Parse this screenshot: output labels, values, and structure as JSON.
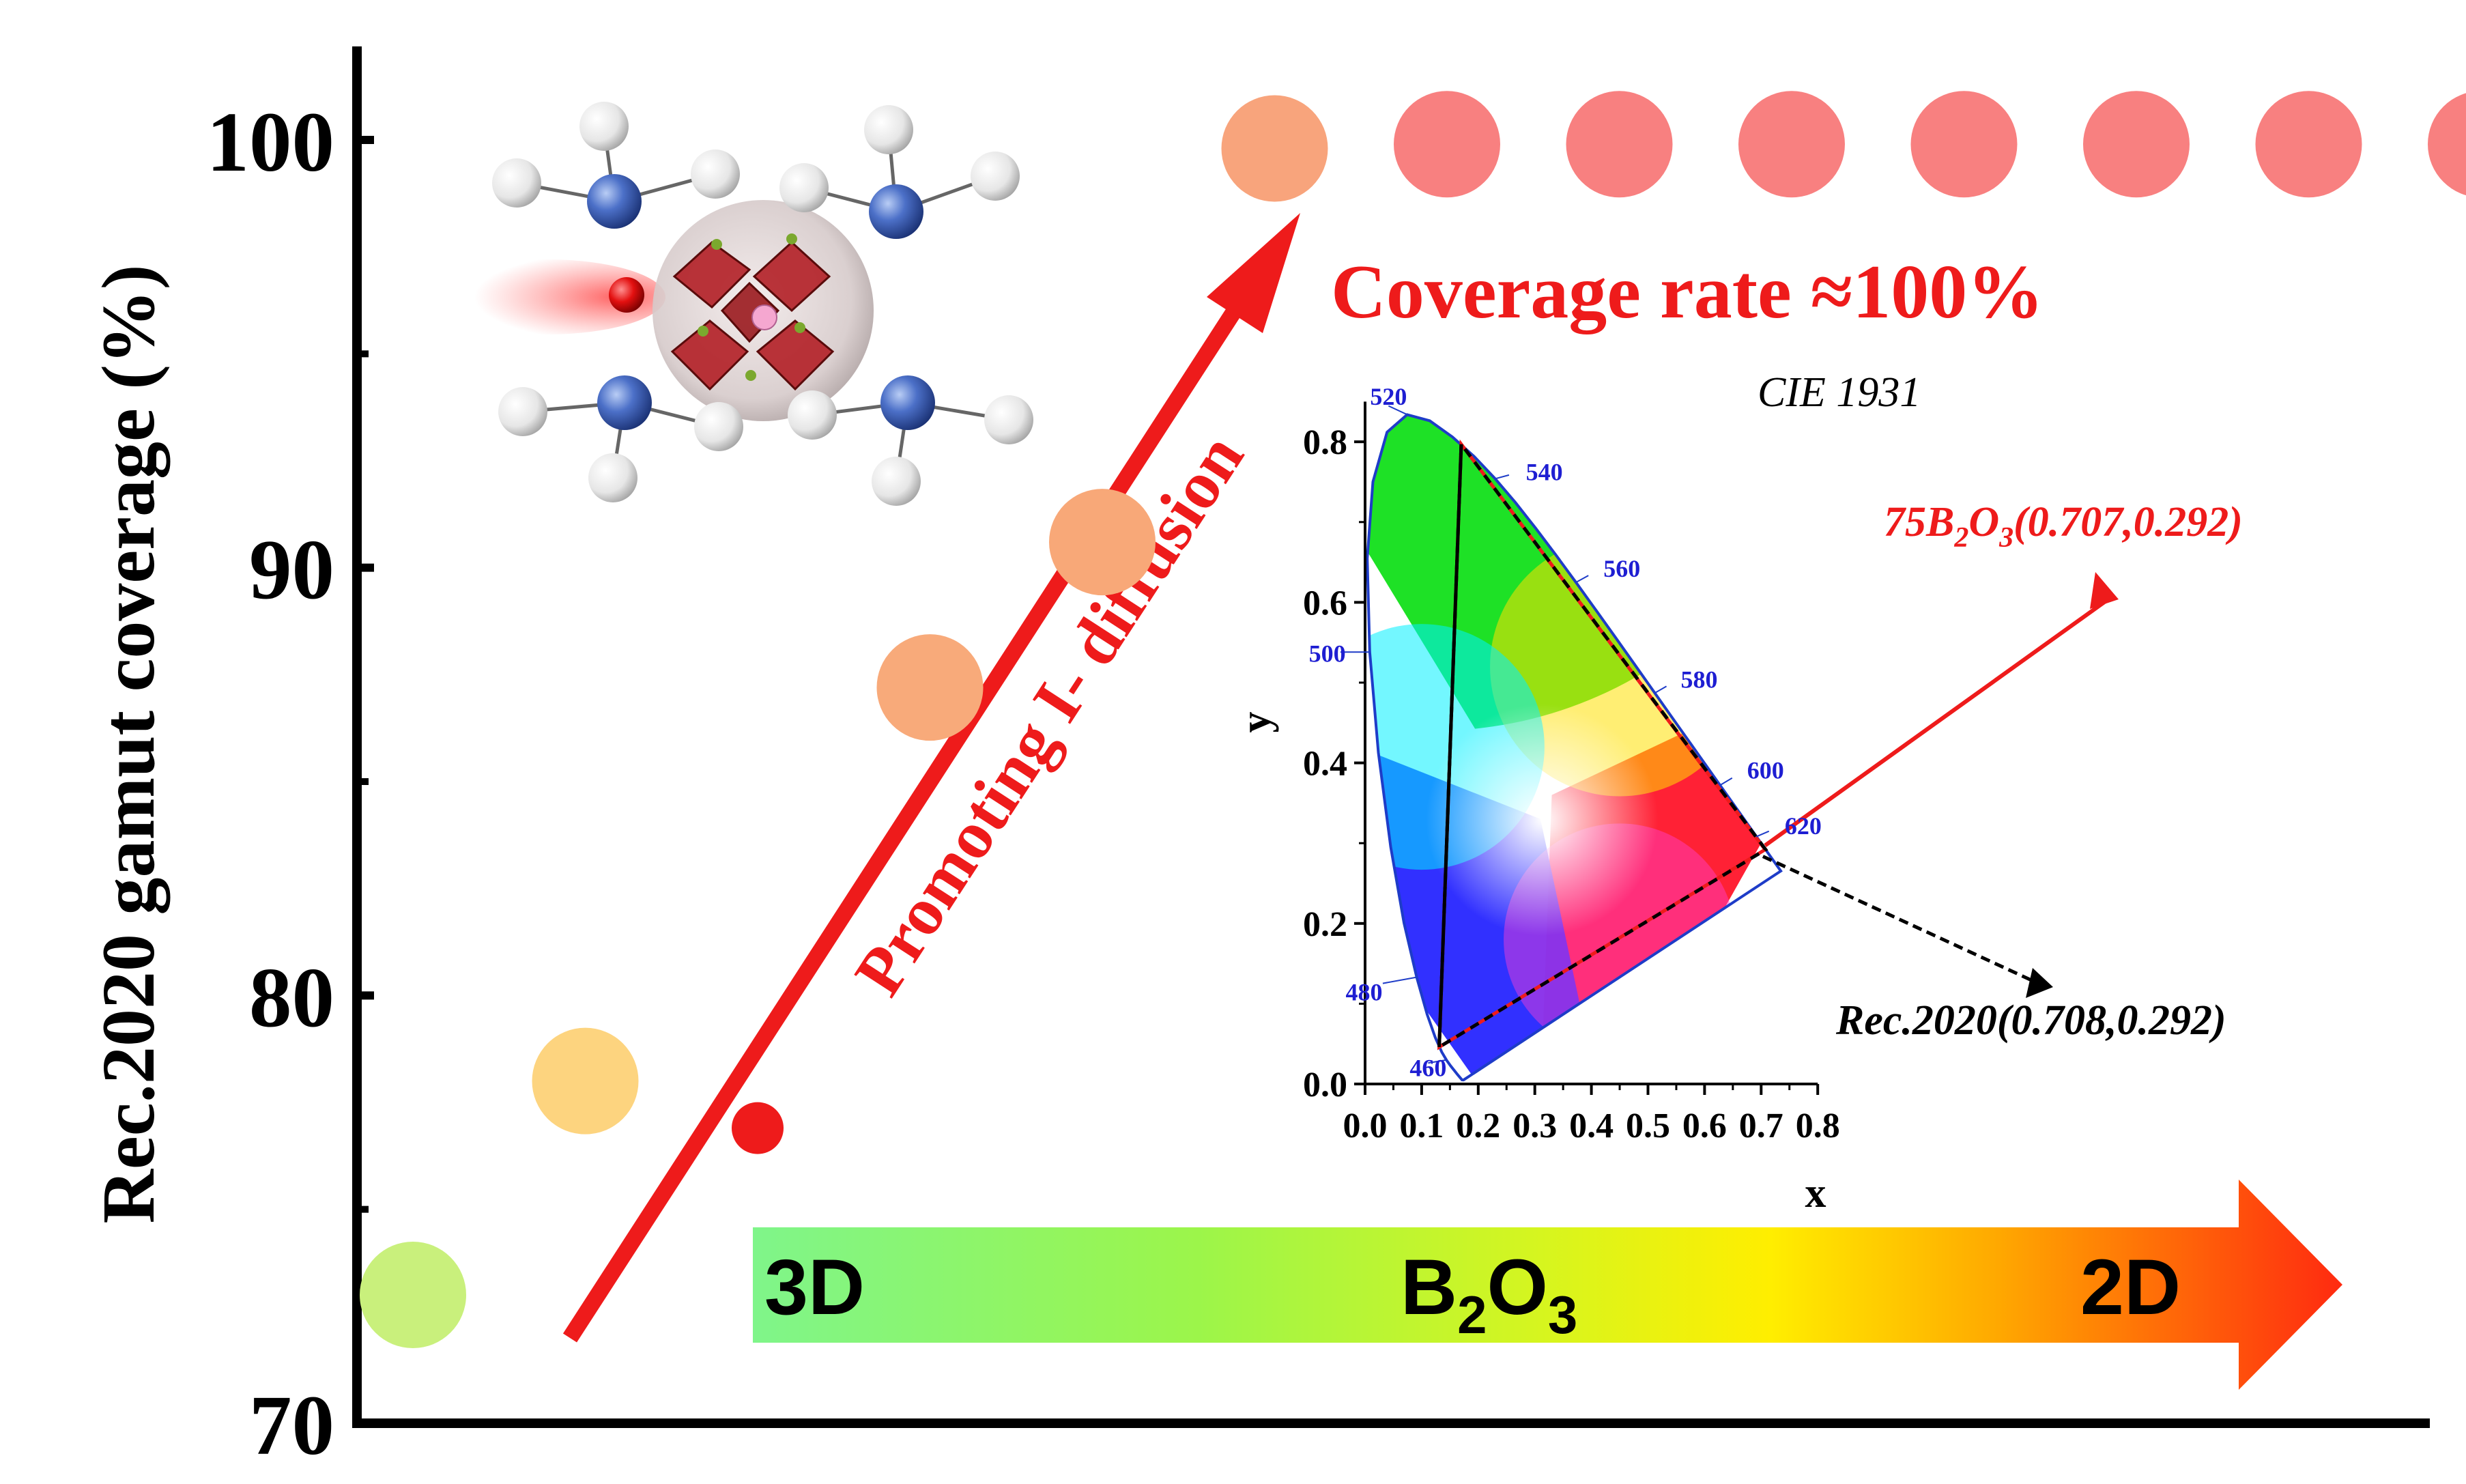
{
  "chart_data": [
    {
      "type": "scatter",
      "title": "",
      "xlabel": "",
      "ylabel": "Rec.2020 gamut coverage (%)",
      "ylim": [
        70,
        102
      ],
      "yticks": [
        "70",
        "80",
        "90",
        "100"
      ],
      "grid": false,
      "points": [
        {
          "x": 1,
          "y": 73.0,
          "color": "#c9f07c"
        },
        {
          "x": 2,
          "y": 78.0,
          "color": "#fdd47f"
        },
        {
          "x": 3,
          "y": 76.9,
          "color": "#ee1b1b"
        },
        {
          "x": 4,
          "y": 87.2,
          "color": "#f8aa7a"
        },
        {
          "x": 5,
          "y": 90.6,
          "color": "#f8a878"
        },
        {
          "x": 6,
          "y": 99.8,
          "color": "#f8a47c"
        },
        {
          "x": 7,
          "y": 99.9,
          "color": "#f88080"
        },
        {
          "x": 8,
          "y": 99.9,
          "color": "#f88080"
        },
        {
          "x": 9,
          "y": 99.9,
          "color": "#f88080"
        },
        {
          "x": 10,
          "y": 99.9,
          "color": "#f88080"
        },
        {
          "x": 11,
          "y": 99.9,
          "color": "#f88080"
        },
        {
          "x": 12,
          "y": 99.9,
          "color": "#f88080"
        },
        {
          "x": 13,
          "y": 99.9,
          "color": "#f88080"
        }
      ],
      "annotations": {
        "coverage": "Coverage rate ≈100%",
        "diffusion": "Promoting I- diffusion",
        "gradient_start": "3D",
        "gradient_mid_main": "B",
        "gradient_mid_sub1": "2",
        "gradient_mid_o": "O",
        "gradient_mid_sub2": "3",
        "gradient_end": "2D"
      }
    },
    {
      "type": "scatter",
      "title": "CIE 1931",
      "xlabel": "x",
      "ylabel": "y",
      "xlim": [
        0.0,
        0.8
      ],
      "ylim": [
        0.0,
        0.85
      ],
      "xticks": [
        "0.0",
        "0.1",
        "0.2",
        "0.3",
        "0.4",
        "0.5",
        "0.6",
        "0.7",
        "0.8"
      ],
      "yticks": [
        "0.0",
        "0.2",
        "0.4",
        "0.6",
        "0.8"
      ],
      "wavelength_labels": [
        {
          "label": "460",
          "x": 0.144,
          "y": 0.03
        },
        {
          "label": "480",
          "x": 0.091,
          "y": 0.133
        },
        {
          "label": "500",
          "x": 0.008,
          "y": 0.538
        },
        {
          "label": "520",
          "x": 0.074,
          "y": 0.834
        },
        {
          "label": "540",
          "x": 0.23,
          "y": 0.754
        },
        {
          "label": "560",
          "x": 0.373,
          "y": 0.625
        },
        {
          "label": "580",
          "x": 0.512,
          "y": 0.487
        },
        {
          "label": "600",
          "x": 0.627,
          "y": 0.372
        },
        {
          "label": "620",
          "x": 0.691,
          "y": 0.308
        }
      ],
      "rec2020_primaries": [
        [
          0.708,
          0.292
        ],
        [
          0.17,
          0.797
        ],
        [
          0.131,
          0.046
        ]
      ],
      "sample_primaries": [
        [
          0.707,
          0.292
        ],
        [
          0.17,
          0.797
        ],
        [
          0.131,
          0.046
        ]
      ],
      "annotations": {
        "sample_prefix": "75B",
        "sample_sub1": "2",
        "sample_o": "O",
        "sample_sub2": "3",
        "sample_coords": "(0.707,0.292)",
        "rec_label": "Rec.2020(0.708,0.292)"
      }
    }
  ],
  "colors": {
    "accent_red": "#ee1b1b",
    "wavelength_blue": "#1e1ed2",
    "axis_black": "#000000"
  },
  "icons": [
    "perovskite-molecule-icon"
  ]
}
